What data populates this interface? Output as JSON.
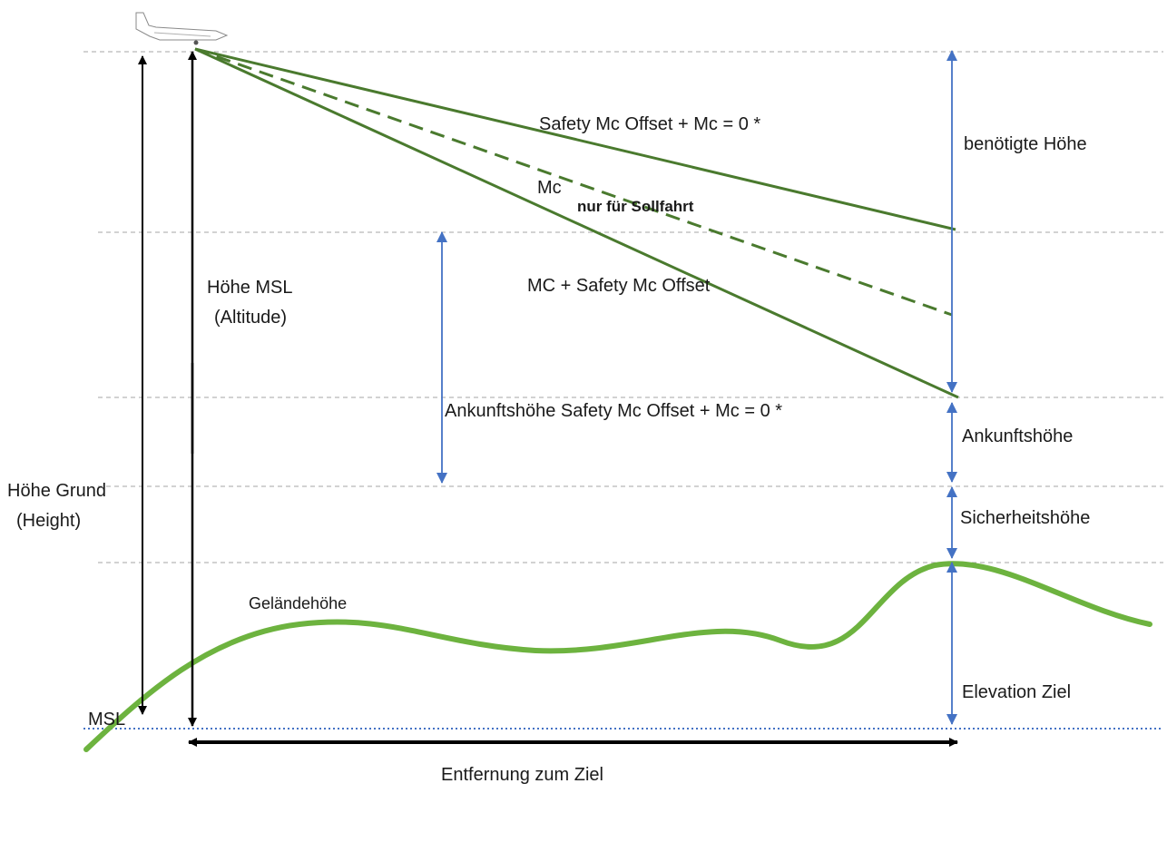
{
  "labels": {
    "safety_mc_zero": "Safety Mc Offset + Mc = 0 *",
    "mc": "Mc",
    "nur_sollfahrt": "nur für Sollfahrt",
    "mc_plus_safety": "MC + Safety Mc Offset",
    "hoehe_msl": "Höhe MSL",
    "altitude": "(Altitude)",
    "ankunft_safety": "Ankunftshöhe Safety Mc Offset + Mc = 0 *",
    "hoehe_grund": "Höhe Grund",
    "height": "(Height)",
    "benoetigte_hoehe": "benötigte Höhe",
    "ankunftshoehe": "Ankunftshöhe",
    "sicherheitshoehe": "Sicherheitshöhe",
    "gelaendehoehe": "Geländehöhe",
    "elevation_ziel": "Elevation Ziel",
    "msl": "MSL",
    "entfernung": "Entfernung zum Ziel"
  },
  "colors": {
    "glide_line": "#4a7a2e",
    "terrain": "#6db33f",
    "blue_arrow": "#4472c4",
    "black_arrow": "#000000",
    "guide_line": "#a6a6a6",
    "msl_line": "#4472c4"
  }
}
